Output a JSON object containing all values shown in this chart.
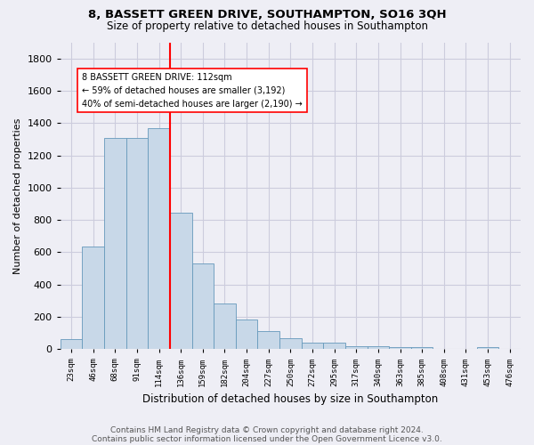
{
  "title1": "8, BASSETT GREEN DRIVE, SOUTHAMPTON, SO16 3QH",
  "title2": "Size of property relative to detached houses in Southampton",
  "xlabel": "Distribution of detached houses by size in Southampton",
  "ylabel": "Number of detached properties",
  "footnote1": "Contains HM Land Registry data © Crown copyright and database right 2024.",
  "footnote2": "Contains public sector information licensed under the Open Government Licence v3.0.",
  "bin_labels": [
    "23sqm",
    "46sqm",
    "68sqm",
    "91sqm",
    "114sqm",
    "136sqm",
    "159sqm",
    "182sqm",
    "204sqm",
    "227sqm",
    "250sqm",
    "272sqm",
    "295sqm",
    "317sqm",
    "340sqm",
    "363sqm",
    "385sqm",
    "408sqm",
    "431sqm",
    "453sqm",
    "476sqm"
  ],
  "bar_heights": [
    60,
    637,
    1307,
    1310,
    1371,
    845,
    529,
    285,
    185,
    112,
    70,
    38,
    38,
    20,
    20,
    15,
    12,
    0,
    0,
    15,
    0
  ],
  "bar_color": "#c8d8e8",
  "bar_edge_color": "#6699bb",
  "grid_color": "#ccccdd",
  "vline_bin_index": 4,
  "vline_color": "red",
  "annotation_line1": "8 BASSETT GREEN DRIVE: 112sqm",
  "annotation_line2": "← 59% of detached houses are smaller (3,192)",
  "annotation_line3": "40% of semi-detached houses are larger (2,190) →",
  "annotation_box_color": "white",
  "annotation_box_edge_color": "red",
  "ylim": [
    0,
    1900
  ],
  "yticks": [
    0,
    200,
    400,
    600,
    800,
    1000,
    1200,
    1400,
    1600,
    1800
  ],
  "bg_color": "#eeeef5",
  "title1_fontsize": 9.5,
  "title2_fontsize": 8.5
}
